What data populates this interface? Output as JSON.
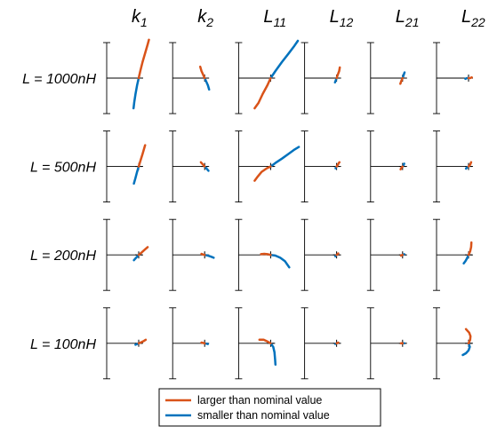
{
  "chart_data": {
    "type": "line",
    "columns": [
      {
        "main": "k",
        "sub": "1"
      },
      {
        "main": "k",
        "sub": "2"
      },
      {
        "main": "L",
        "sub": "11"
      },
      {
        "main": "L",
        "sub": "12"
      },
      {
        "main": "L",
        "sub": "21"
      },
      {
        "main": "L",
        "sub": "22"
      }
    ],
    "rows": [
      "L = 1000nH",
      "L = 500nH",
      "L = 200nH",
      "L = 100nH"
    ],
    "legend": {
      "position": "bottom-center",
      "entries": [
        {
          "label": "larger than nominal value",
          "color": "#D95319"
        },
        {
          "label": "smaller than nominal value",
          "color": "#0072BD"
        }
      ]
    },
    "colors": {
      "larger": "#D95319",
      "smaller": "#0072BD",
      "axis": "#000000"
    },
    "axes": {
      "xlim": [
        -1,
        1
      ],
      "ylim": [
        -1,
        1
      ],
      "ticks": [
        -1,
        1
      ],
      "grid": false
    },
    "panels": [
      [
        {
          "larger": [
            [
              0,
              0
            ],
            [
              0.05,
              0.2
            ],
            [
              0.12,
              0.45
            ],
            [
              0.2,
              0.7
            ],
            [
              0.28,
              0.95
            ],
            [
              0.32,
              1.08
            ]
          ],
          "smaller": [
            [
              0,
              0
            ],
            [
              -0.05,
              -0.2
            ],
            [
              -0.1,
              -0.45
            ],
            [
              -0.14,
              -0.68
            ],
            [
              -0.16,
              -0.85
            ]
          ]
        },
        {
          "larger": [
            [
              0,
              0
            ],
            [
              -0.05,
              0.1
            ],
            [
              -0.1,
              0.2
            ],
            [
              -0.14,
              0.32
            ]
          ],
          "smaller": [
            [
              0,
              0
            ],
            [
              0.05,
              -0.1
            ],
            [
              0.1,
              -0.2
            ],
            [
              0.14,
              -0.32
            ]
          ]
        },
        {
          "larger": [
            [
              0,
              0
            ],
            [
              -0.1,
              -0.2
            ],
            [
              -0.25,
              -0.45
            ],
            [
              -0.38,
              -0.7
            ],
            [
              -0.5,
              -0.85
            ]
          ],
          "smaller": [
            [
              0,
              0
            ],
            [
              0.15,
              0.2
            ],
            [
              0.35,
              0.45
            ],
            [
              0.55,
              0.68
            ],
            [
              0.72,
              0.88
            ],
            [
              0.85,
              1.05
            ]
          ]
        },
        {
          "larger": [
            [
              0,
              0
            ],
            [
              0.04,
              0.1
            ],
            [
              0.08,
              0.2
            ],
            [
              0.1,
              0.3
            ]
          ],
          "smaller": [
            [
              0,
              0
            ],
            [
              -0.02,
              -0.05
            ],
            [
              -0.05,
              -0.12
            ]
          ]
        },
        {
          "larger": [
            [
              0,
              0
            ],
            [
              -0.04,
              -0.08
            ],
            [
              -0.07,
              -0.16
            ]
          ],
          "smaller": [
            [
              0,
              0
            ],
            [
              0.03,
              0.08
            ],
            [
              0.06,
              0.16
            ]
          ]
        },
        {
          "larger": [
            [
              0,
              0
            ],
            [
              0.05,
              0
            ],
            [
              0.1,
              0.02
            ]
          ],
          "smaller": [
            [
              0,
              0
            ],
            [
              -0.05,
              0
            ],
            [
              -0.1,
              -0.02
            ]
          ]
        }
      ],
      [
        {
          "larger": [
            [
              0,
              0
            ],
            [
              0.05,
              0.15
            ],
            [
              0.12,
              0.35
            ],
            [
              0.2,
              0.6
            ]
          ],
          "smaller": [
            [
              0,
              0
            ],
            [
              -0.05,
              -0.15
            ],
            [
              -0.1,
              -0.32
            ],
            [
              -0.15,
              -0.48
            ]
          ]
        },
        {
          "larger": [
            [
              0,
              0
            ],
            [
              -0.05,
              0.05
            ],
            [
              -0.12,
              0.12
            ]
          ],
          "smaller": [
            [
              0,
              0
            ],
            [
              0.05,
              -0.05
            ],
            [
              0.12,
              -0.12
            ]
          ]
        },
        {
          "larger": [
            [
              0,
              0
            ],
            [
              -0.12,
              -0.05
            ],
            [
              -0.28,
              -0.15
            ],
            [
              -0.4,
              -0.28
            ],
            [
              -0.5,
              -0.4
            ]
          ],
          "smaller": [
            [
              0,
              0
            ],
            [
              0.15,
              0.1
            ],
            [
              0.35,
              0.22
            ],
            [
              0.55,
              0.35
            ],
            [
              0.75,
              0.48
            ],
            [
              0.88,
              0.55
            ]
          ]
        },
        {
          "larger": [
            [
              0,
              0
            ],
            [
              0.04,
              0.05
            ],
            [
              0.07,
              0.1
            ],
            [
              0.09,
              0.12
            ]
          ],
          "smaller": [
            [
              0,
              0
            ],
            [
              -0.02,
              -0.02
            ],
            [
              -0.03,
              -0.05
            ]
          ]
        },
        {
          "larger": [
            [
              0,
              0
            ],
            [
              -0.04,
              -0.04
            ],
            [
              -0.06,
              -0.08
            ]
          ],
          "smaller": [
            [
              0,
              0
            ],
            [
              0.03,
              0.04
            ],
            [
              0.05,
              0.08
            ]
          ]
        },
        {
          "larger": [
            [
              0,
              0
            ],
            [
              0.05,
              0.05
            ],
            [
              0.08,
              0.12
            ]
          ],
          "smaller": [
            [
              0,
              0
            ],
            [
              -0.05,
              -0.03
            ],
            [
              -0.08,
              -0.06
            ]
          ]
        }
      ],
      [
        {
          "larger": [
            [
              0,
              0
            ],
            [
              0.08,
              0.06
            ],
            [
              0.18,
              0.14
            ],
            [
              0.28,
              0.22
            ]
          ],
          "smaller": [
            [
              0,
              0
            ],
            [
              -0.05,
              -0.05
            ],
            [
              -0.1,
              -0.1
            ],
            [
              -0.15,
              -0.15
            ]
          ]
        },
        {
          "larger": [
            [
              0,
              0
            ],
            [
              -0.05,
              0.01
            ],
            [
              -0.1,
              0.03
            ]
          ],
          "smaller": [
            [
              0,
              0
            ],
            [
              0.1,
              -0.02
            ],
            [
              0.2,
              -0.05
            ],
            [
              0.28,
              -0.08
            ]
          ]
        },
        {
          "larger": [
            [
              0,
              0
            ],
            [
              -0.1,
              0.02
            ],
            [
              -0.2,
              0.03
            ],
            [
              -0.3,
              0.02
            ]
          ],
          "smaller": [
            [
              0,
              0
            ],
            [
              0.15,
              -0.02
            ],
            [
              0.3,
              -0.08
            ],
            [
              0.45,
              -0.18
            ],
            [
              0.58,
              -0.35
            ]
          ]
        },
        {
          "larger": [
            [
              0,
              0
            ],
            [
              0.03,
              0.02
            ],
            [
              0.05,
              0.04
            ]
          ],
          "smaller": [
            [
              0,
              0
            ],
            [
              -0.02,
              -0.02
            ],
            [
              -0.04,
              -0.04
            ]
          ]
        },
        {
          "larger": [
            [
              0,
              0
            ],
            [
              -0.03,
              -0.01
            ],
            [
              -0.05,
              -0.02
            ]
          ],
          "smaller": [
            [
              0,
              0
            ],
            [
              0.03,
              0.01
            ],
            [
              0.05,
              0.02
            ]
          ]
        },
        {
          "larger": [
            [
              0,
              0
            ],
            [
              0.05,
              0.1
            ],
            [
              0.08,
              0.22
            ],
            [
              0.09,
              0.35
            ]
          ],
          "smaller": [
            [
              0,
              0
            ],
            [
              -0.05,
              -0.1
            ],
            [
              -0.1,
              -0.18
            ],
            [
              -0.15,
              -0.24
            ]
          ]
        }
      ],
      [
        {
          "larger": [
            [
              0,
              0
            ],
            [
              0.08,
              0.03
            ],
            [
              0.15,
              0.06
            ],
            [
              0.22,
              0.1
            ]
          ],
          "smaller": [
            [
              0,
              0
            ],
            [
              -0.05,
              -0.02
            ],
            [
              -0.1,
              -0.04
            ]
          ]
        },
        {
          "larger": [
            [
              0,
              0
            ],
            [
              -0.05,
              0.01
            ],
            [
              -0.1,
              0.02
            ]
          ],
          "smaller": [
            [
              0,
              0
            ],
            [
              0.05,
              -0.01
            ],
            [
              0.1,
              -0.02
            ]
          ]
        },
        {
          "larger": [
            [
              0,
              0
            ],
            [
              -0.1,
              0.05
            ],
            [
              -0.22,
              0.1
            ],
            [
              -0.35,
              0.1
            ]
          ],
          "smaller": [
            [
              0,
              0
            ],
            [
              0.08,
              -0.1
            ],
            [
              0.12,
              -0.25
            ],
            [
              0.14,
              -0.45
            ],
            [
              0.15,
              -0.6
            ]
          ]
        },
        {
          "larger": [
            [
              0,
              0
            ],
            [
              0.03,
              0.01
            ],
            [
              0.05,
              0.02
            ]
          ],
          "smaller": [
            [
              0,
              0
            ],
            [
              -0.02,
              -0.01
            ],
            [
              -0.04,
              -0.02
            ]
          ]
        },
        {
          "larger": [
            [
              0,
              0
            ],
            [
              -0.03,
              0
            ],
            [
              -0.05,
              0
            ]
          ],
          "smaller": [
            [
              0,
              0
            ],
            [
              0.03,
              0
            ],
            [
              0.05,
              0
            ]
          ]
        },
        {
          "larger": [
            [
              0,
              0
            ],
            [
              0.05,
              0.1
            ],
            [
              0.06,
              0.2
            ],
            [
              0.02,
              0.3
            ],
            [
              -0.08,
              0.4
            ]
          ],
          "smaller": [
            [
              0,
              0
            ],
            [
              0.04,
              -0.1
            ],
            [
              0.0,
              -0.2
            ],
            [
              -0.08,
              -0.28
            ],
            [
              -0.18,
              -0.33
            ]
          ]
        }
      ]
    ]
  }
}
